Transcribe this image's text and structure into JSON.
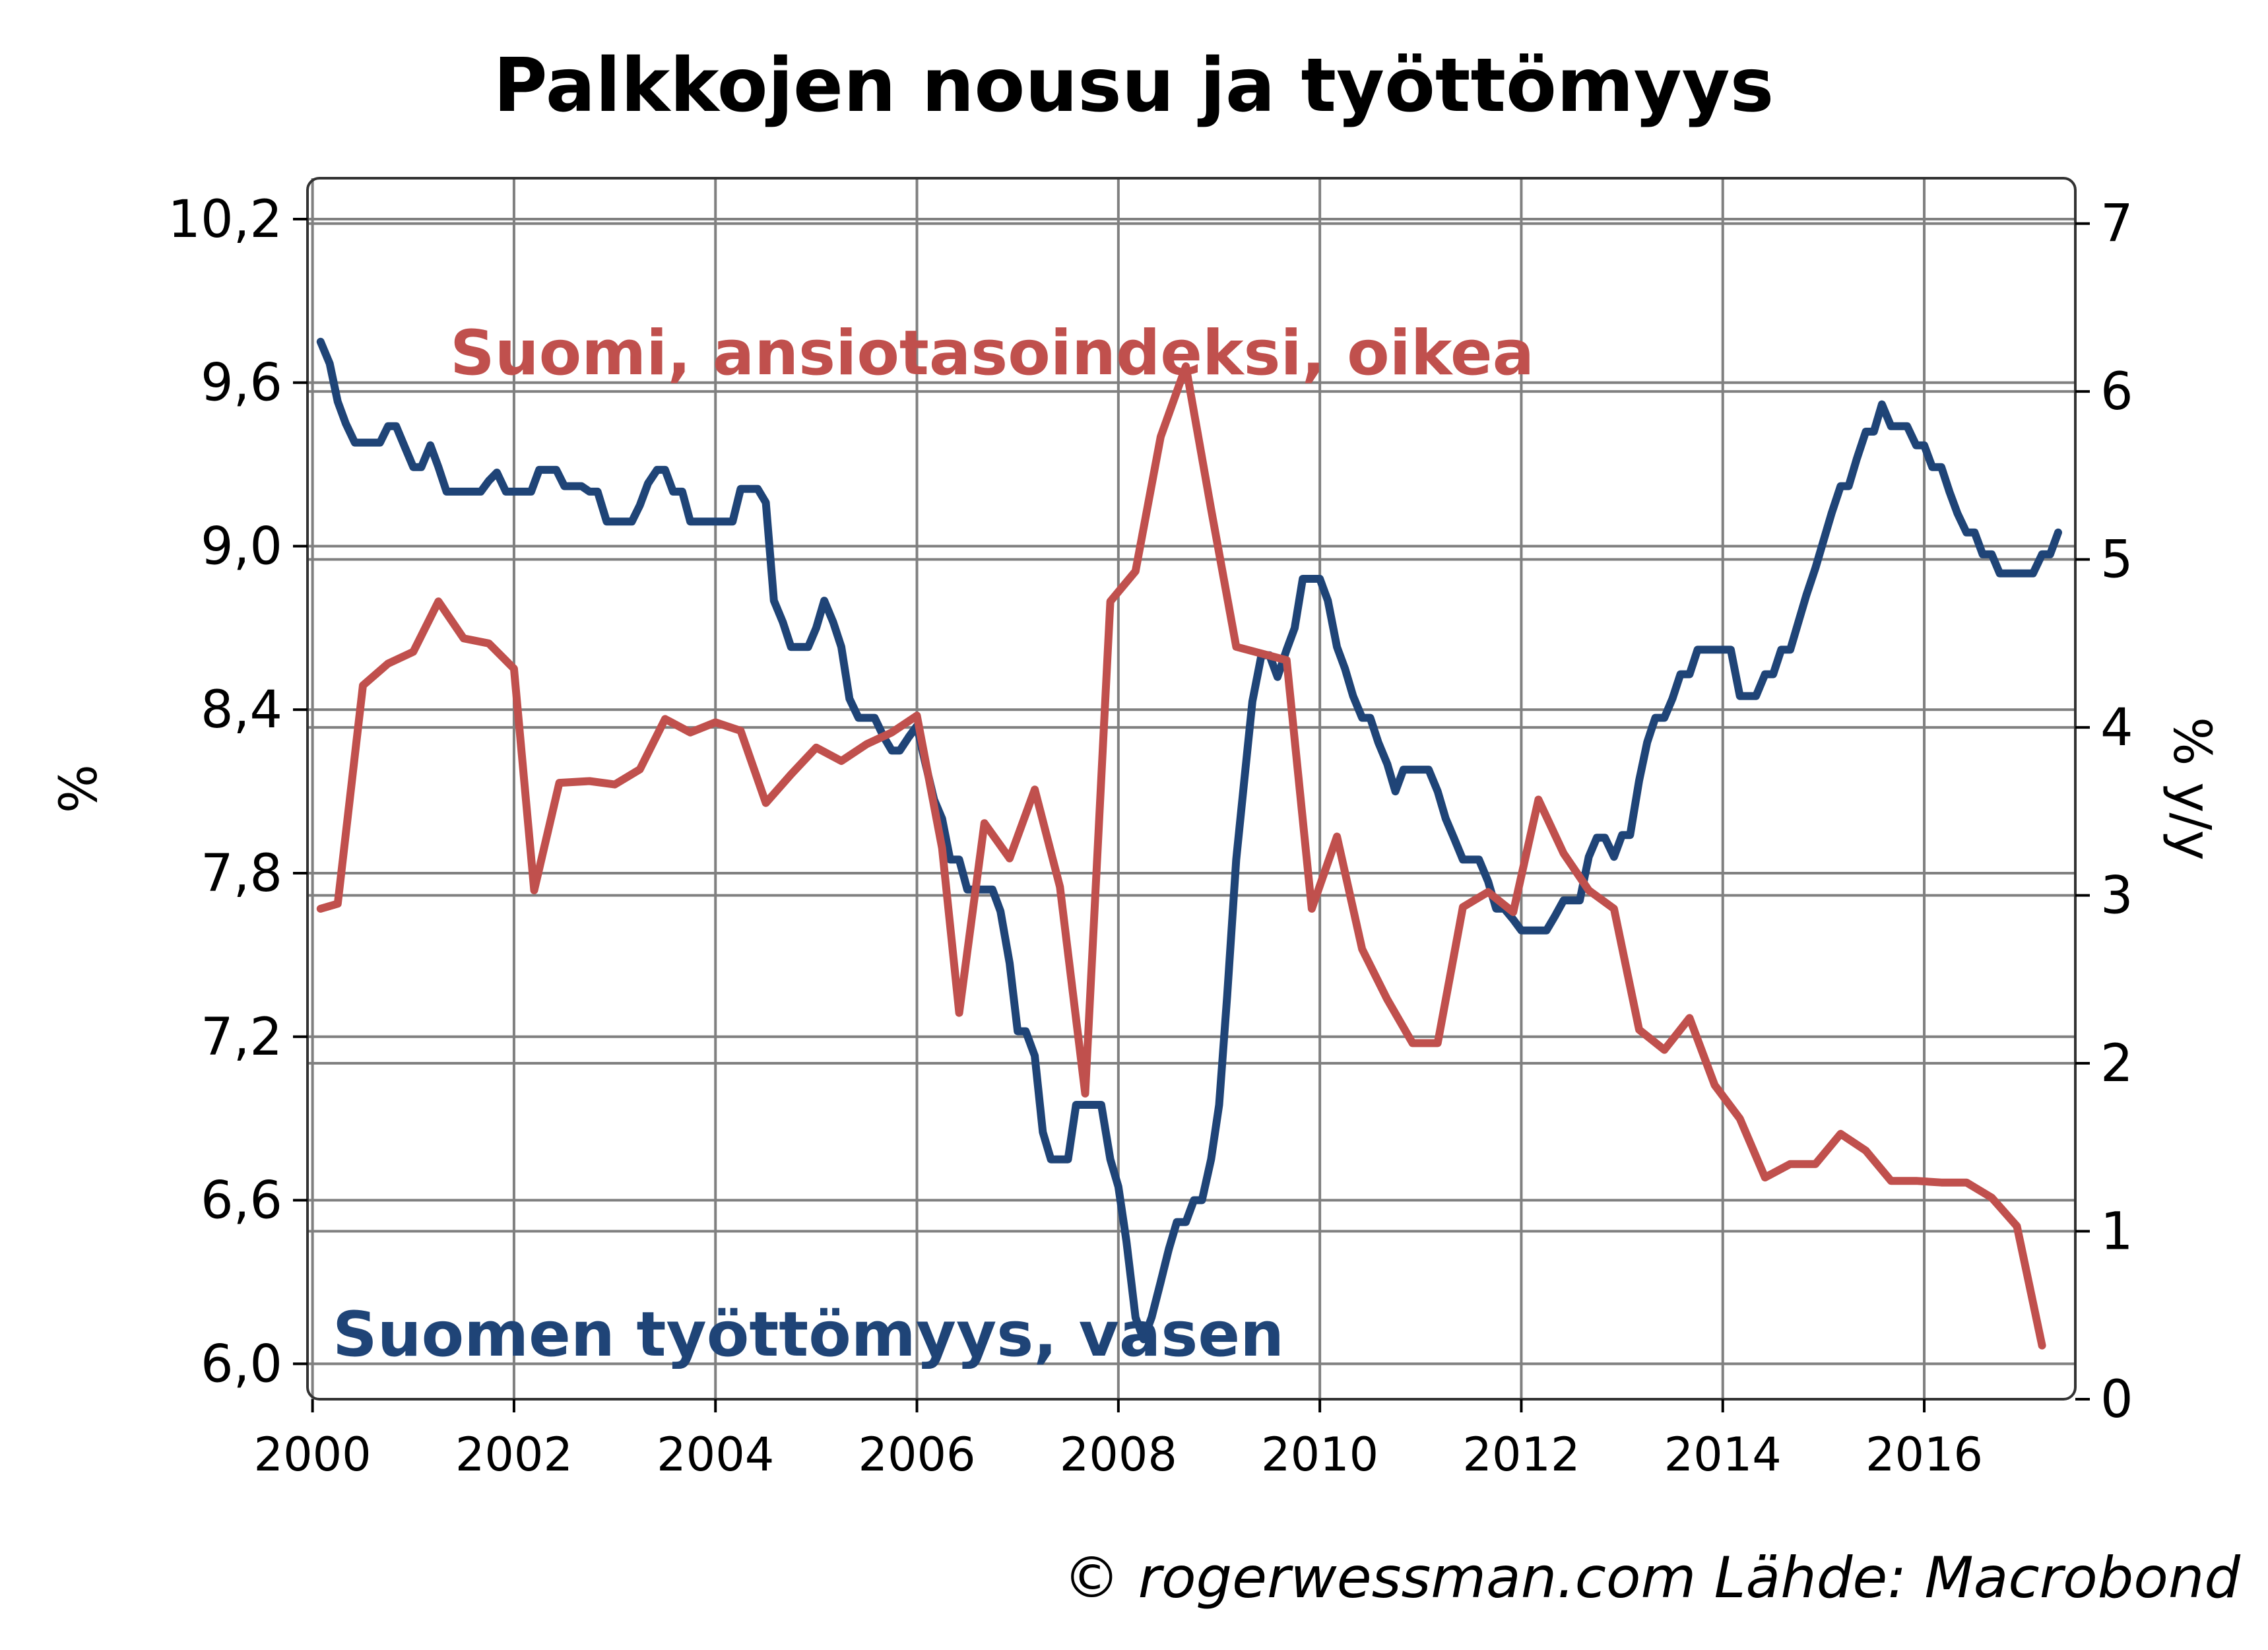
{
  "chart_data": {
    "type": "line",
    "title": "Palkkojen nousu ja työttömyys",
    "footer": "© rogerwessman.com Lähde: Macrobond",
    "left_axis": {
      "label": "%",
      "ticks": [
        "6,0",
        "6,6",
        "7,2",
        "7,8",
        "8,4",
        "9,0",
        "9,6",
        "10,2"
      ],
      "tick_values": [
        6.0,
        6.6,
        7.2,
        7.8,
        8.4,
        9.0,
        9.6,
        10.2
      ],
      "range": [
        5.87,
        10.35
      ]
    },
    "right_axis": {
      "label": "% y/y",
      "ticks": [
        "0",
        "1",
        "2",
        "3",
        "4",
        "5",
        "6",
        "7"
      ],
      "tick_values": [
        0,
        1,
        2,
        3,
        4,
        5,
        6,
        7
      ],
      "range": [
        0,
        7.27
      ]
    },
    "x_axis": {
      "ticks": [
        "2000",
        "2002",
        "2004",
        "2006",
        "2008",
        "2010",
        "2012",
        "2014",
        "2016"
      ],
      "tick_values": [
        2000,
        2002,
        2004,
        2006,
        2008,
        2010,
        2012,
        2014,
        2016
      ],
      "range": [
        1999.95,
        2017.5
      ]
    },
    "grid": true,
    "series": [
      {
        "name": "Suomen työttömyys, vasen",
        "axis": "left",
        "color": "#1f4477",
        "points": [
          [
            2000.08,
            9.75
          ],
          [
            2000.17,
            9.67
          ],
          [
            2000.25,
            9.53
          ],
          [
            2000.33,
            9.45
          ],
          [
            2000.42,
            9.38
          ],
          [
            2000.5,
            9.38
          ],
          [
            2000.58,
            9.38
          ],
          [
            2000.67,
            9.38
          ],
          [
            2000.75,
            9.44
          ],
          [
            2000.83,
            9.44
          ],
          [
            2000.92,
            9.36
          ],
          [
            2001.0,
            9.29
          ],
          [
            2001.08,
            9.29
          ],
          [
            2001.17,
            9.37
          ],
          [
            2001.25,
            9.29
          ],
          [
            2001.33,
            9.2
          ],
          [
            2001.42,
            9.2
          ],
          [
            2001.5,
            9.2
          ],
          [
            2001.58,
            9.2
          ],
          [
            2001.67,
            9.2
          ],
          [
            2001.75,
            9.24
          ],
          [
            2001.83,
            9.27
          ],
          [
            2001.92,
            9.2
          ],
          [
            2002.0,
            9.2
          ],
          [
            2002.08,
            9.2
          ],
          [
            2002.17,
            9.2
          ],
          [
            2002.25,
            9.28
          ],
          [
            2002.33,
            9.28
          ],
          [
            2002.42,
            9.28
          ],
          [
            2002.5,
            9.22
          ],
          [
            2002.58,
            9.22
          ],
          [
            2002.67,
            9.22
          ],
          [
            2002.75,
            9.2
          ],
          [
            2002.83,
            9.2
          ],
          [
            2002.92,
            9.09
          ],
          [
            2003.0,
            9.09
          ],
          [
            2003.08,
            9.09
          ],
          [
            2003.17,
            9.09
          ],
          [
            2003.25,
            9.15
          ],
          [
            2003.33,
            9.23
          ],
          [
            2003.42,
            9.28
          ],
          [
            2003.5,
            9.28
          ],
          [
            2003.58,
            9.2
          ],
          [
            2003.67,
            9.2
          ],
          [
            2003.75,
            9.09
          ],
          [
            2003.83,
            9.09
          ],
          [
            2003.92,
            9.09
          ],
          [
            2004.0,
            9.09
          ],
          [
            2004.08,
            9.09
          ],
          [
            2004.17,
            9.09
          ],
          [
            2004.25,
            9.21
          ],
          [
            2004.33,
            9.21
          ],
          [
            2004.42,
            9.21
          ],
          [
            2004.5,
            9.16
          ],
          [
            2004.58,
            8.8
          ],
          [
            2004.67,
            8.72
          ],
          [
            2004.75,
            8.63
          ],
          [
            2004.83,
            8.63
          ],
          [
            2004.92,
            8.63
          ],
          [
            2005.0,
            8.7
          ],
          [
            2005.08,
            8.8
          ],
          [
            2005.17,
            8.72
          ],
          [
            2005.25,
            8.63
          ],
          [
            2005.33,
            8.44
          ],
          [
            2005.42,
            8.37
          ],
          [
            2005.5,
            8.37
          ],
          [
            2005.58,
            8.37
          ],
          [
            2005.67,
            8.3
          ],
          [
            2005.75,
            8.25
          ],
          [
            2005.83,
            8.25
          ],
          [
            2005.92,
            8.3
          ],
          [
            2006.0,
            8.34
          ],
          [
            2006.08,
            8.21
          ],
          [
            2006.17,
            8.07
          ],
          [
            2006.25,
            8.0
          ],
          [
            2006.33,
            7.85
          ],
          [
            2006.42,
            7.85
          ],
          [
            2006.5,
            7.74
          ],
          [
            2006.58,
            7.74
          ],
          [
            2006.67,
            7.74
          ],
          [
            2006.75,
            7.74
          ],
          [
            2006.83,
            7.66
          ],
          [
            2006.92,
            7.47
          ],
          [
            2007.0,
            7.22
          ],
          [
            2007.08,
            7.22
          ],
          [
            2007.17,
            7.13
          ],
          [
            2007.25,
            6.85
          ],
          [
            2007.33,
            6.75
          ],
          [
            2007.42,
            6.75
          ],
          [
            2007.5,
            6.75
          ],
          [
            2007.58,
            6.95
          ],
          [
            2007.67,
            6.95
          ],
          [
            2007.75,
            6.95
          ],
          [
            2007.83,
            6.95
          ],
          [
            2007.92,
            6.75
          ],
          [
            2008.0,
            6.65
          ],
          [
            2008.08,
            6.45
          ],
          [
            2008.17,
            6.17
          ],
          [
            2008.25,
            6.09
          ],
          [
            2008.33,
            6.17
          ],
          [
            2008.42,
            6.3
          ],
          [
            2008.5,
            6.42
          ],
          [
            2008.58,
            6.52
          ],
          [
            2008.67,
            6.52
          ],
          [
            2008.75,
            6.6
          ],
          [
            2008.83,
            6.6
          ],
          [
            2008.92,
            6.75
          ],
          [
            2009.0,
            6.95
          ],
          [
            2009.08,
            7.35
          ],
          [
            2009.17,
            7.85
          ],
          [
            2009.25,
            8.14
          ],
          [
            2009.33,
            8.43
          ],
          [
            2009.42,
            8.6
          ],
          [
            2009.5,
            8.6
          ],
          [
            2009.58,
            8.52
          ],
          [
            2009.67,
            8.62
          ],
          [
            2009.75,
            8.7
          ],
          [
            2009.83,
            8.88
          ],
          [
            2009.92,
            8.88
          ],
          [
            2010.0,
            8.88
          ],
          [
            2010.08,
            8.8
          ],
          [
            2010.17,
            8.63
          ],
          [
            2010.25,
            8.55
          ],
          [
            2010.33,
            8.45
          ],
          [
            2010.42,
            8.37
          ],
          [
            2010.5,
            8.37
          ],
          [
            2010.58,
            8.28
          ],
          [
            2010.67,
            8.2
          ],
          [
            2010.75,
            8.1
          ],
          [
            2010.83,
            8.18
          ],
          [
            2010.92,
            8.18
          ],
          [
            2011.0,
            8.18
          ],
          [
            2011.08,
            8.18
          ],
          [
            2011.17,
            8.1
          ],
          [
            2011.25,
            8.0
          ],
          [
            2011.33,
            7.93
          ],
          [
            2011.42,
            7.85
          ],
          [
            2011.5,
            7.85
          ],
          [
            2011.58,
            7.85
          ],
          [
            2011.67,
            7.77
          ],
          [
            2011.75,
            7.67
          ],
          [
            2011.83,
            7.67
          ],
          [
            2011.92,
            7.63
          ],
          [
            2012.0,
            7.59
          ],
          [
            2012.08,
            7.59
          ],
          [
            2012.17,
            7.59
          ],
          [
            2012.25,
            7.59
          ],
          [
            2012.33,
            7.64
          ],
          [
            2012.42,
            7.7
          ],
          [
            2012.5,
            7.7
          ],
          [
            2012.58,
            7.7
          ],
          [
            2012.67,
            7.86
          ],
          [
            2012.75,
            7.93
          ],
          [
            2012.83,
            7.93
          ],
          [
            2012.92,
            7.86
          ],
          [
            2013.0,
            7.94
          ],
          [
            2013.08,
            7.94
          ],
          [
            2013.17,
            8.14
          ],
          [
            2013.25,
            8.28
          ],
          [
            2013.33,
            8.37
          ],
          [
            2013.42,
            8.37
          ],
          [
            2013.5,
            8.44
          ],
          [
            2013.58,
            8.53
          ],
          [
            2013.67,
            8.53
          ],
          [
            2013.75,
            8.62
          ],
          [
            2013.83,
            8.62
          ],
          [
            2013.92,
            8.62
          ],
          [
            2014.0,
            8.62
          ],
          [
            2014.08,
            8.62
          ],
          [
            2014.17,
            8.45
          ],
          [
            2014.25,
            8.45
          ],
          [
            2014.33,
            8.45
          ],
          [
            2014.42,
            8.53
          ],
          [
            2014.5,
            8.53
          ],
          [
            2014.58,
            8.62
          ],
          [
            2014.67,
            8.62
          ],
          [
            2014.75,
            8.72
          ],
          [
            2014.83,
            8.82
          ],
          [
            2014.92,
            8.92
          ],
          [
            2015.0,
            9.02
          ],
          [
            2015.08,
            9.12
          ],
          [
            2015.17,
            9.22
          ],
          [
            2015.25,
            9.22
          ],
          [
            2015.33,
            9.32
          ],
          [
            2015.42,
            9.42
          ],
          [
            2015.5,
            9.42
          ],
          [
            2015.58,
            9.52
          ],
          [
            2015.67,
            9.44
          ],
          [
            2015.75,
            9.44
          ],
          [
            2015.83,
            9.44
          ],
          [
            2015.92,
            9.37
          ],
          [
            2016.0,
            9.37
          ],
          [
            2016.08,
            9.29
          ],
          [
            2016.17,
            9.29
          ],
          [
            2016.25,
            9.2
          ],
          [
            2016.33,
            9.12
          ],
          [
            2016.42,
            9.05
          ],
          [
            2016.5,
            9.05
          ],
          [
            2016.58,
            8.97
          ],
          [
            2016.67,
            8.97
          ],
          [
            2016.75,
            8.9
          ],
          [
            2016.83,
            8.9
          ],
          [
            2016.92,
            8.9
          ],
          [
            2017.0,
            8.9
          ],
          [
            2017.08,
            8.9
          ],
          [
            2017.17,
            8.97
          ],
          [
            2017.25,
            8.97
          ],
          [
            2017.33,
            9.05
          ]
        ]
      },
      {
        "name": "Suomi, ansiotasoindeksi, oikea",
        "axis": "right",
        "color": "#c0504d",
        "points": [
          [
            2000.08,
            2.92
          ],
          [
            2000.25,
            2.95
          ],
          [
            2000.5,
            4.25
          ],
          [
            2000.75,
            4.38
          ],
          [
            2001.0,
            4.45
          ],
          [
            2001.25,
            4.75
          ],
          [
            2001.5,
            4.53
          ],
          [
            2001.75,
            4.5
          ],
          [
            2002.0,
            4.35
          ],
          [
            2002.2,
            3.03
          ],
          [
            2002.45,
            3.67
          ],
          [
            2002.75,
            3.68
          ],
          [
            2003.0,
            3.66
          ],
          [
            2003.25,
            3.75
          ],
          [
            2003.5,
            4.05
          ],
          [
            2003.75,
            3.97
          ],
          [
            2004.0,
            4.03
          ],
          [
            2004.25,
            3.98
          ],
          [
            2004.5,
            3.55
          ],
          [
            2004.75,
            3.72
          ],
          [
            2005.0,
            3.88
          ],
          [
            2005.25,
            3.8
          ],
          [
            2005.5,
            3.9
          ],
          [
            2005.75,
            3.97
          ],
          [
            2006.0,
            4.07
          ],
          [
            2006.25,
            3.28
          ],
          [
            2006.42,
            2.3
          ],
          [
            2006.67,
            3.43
          ],
          [
            2006.92,
            3.22
          ],
          [
            2007.17,
            3.63
          ],
          [
            2007.42,
            3.05
          ],
          [
            2007.67,
            1.82
          ],
          [
            2007.92,
            4.75
          ],
          [
            2008.17,
            4.93
          ],
          [
            2008.42,
            5.73
          ],
          [
            2008.67,
            6.15
          ],
          [
            2008.92,
            5.3
          ],
          [
            2009.17,
            4.48
          ],
          [
            2009.42,
            4.44
          ],
          [
            2009.67,
            4.4
          ],
          [
            2009.92,
            2.92
          ],
          [
            2010.17,
            3.35
          ],
          [
            2010.42,
            2.68
          ],
          [
            2010.67,
            2.38
          ],
          [
            2010.92,
            2.12
          ],
          [
            2011.17,
            2.12
          ],
          [
            2011.42,
            2.93
          ],
          [
            2011.67,
            3.02
          ],
          [
            2011.92,
            2.9
          ],
          [
            2012.17,
            3.57
          ],
          [
            2012.42,
            3.25
          ],
          [
            2012.67,
            3.03
          ],
          [
            2012.92,
            2.92
          ],
          [
            2013.17,
            2.2
          ],
          [
            2013.42,
            2.08
          ],
          [
            2013.67,
            2.27
          ],
          [
            2013.92,
            1.87
          ],
          [
            2014.17,
            1.67
          ],
          [
            2014.42,
            1.32
          ],
          [
            2014.67,
            1.4
          ],
          [
            2014.92,
            1.4
          ],
          [
            2015.17,
            1.58
          ],
          [
            2015.42,
            1.48
          ],
          [
            2015.67,
            1.3
          ],
          [
            2015.92,
            1.3
          ],
          [
            2016.17,
            1.29
          ],
          [
            2016.42,
            1.29
          ],
          [
            2016.67,
            1.2
          ],
          [
            2016.92,
            1.03
          ],
          [
            2017.17,
            0.32
          ]
        ]
      }
    ]
  }
}
